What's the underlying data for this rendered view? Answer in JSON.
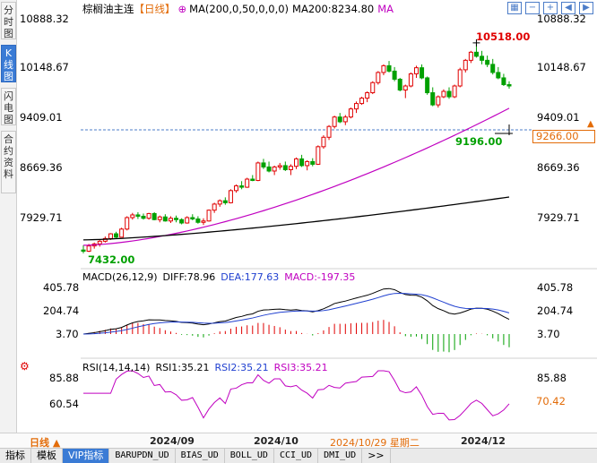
{
  "sidebar": {
    "tabs": [
      "分时图",
      "K线图",
      "闪电图",
      "合约资料"
    ],
    "active_index": 1
  },
  "header": {
    "title": "棕榈油主连",
    "freq": "【日线】",
    "ma_text": "MA(200,0,50,0,0,0)",
    "ma200_text": "MA200:8234.80",
    "ma_tag": "MA",
    "icons": [
      "grid-icon",
      "minus-icon",
      "plus-icon",
      "arrow-left-icon",
      "arrow-right-icon"
    ]
  },
  "price_axis": {
    "labels": [
      "10888.32",
      "10148.67",
      "9409.01",
      "8669.36",
      "7929.71"
    ],
    "current": "9266.00"
  },
  "annotations": {
    "high": "10518.00",
    "low": "7432.00",
    "last_low": "9196.00"
  },
  "macd": {
    "title": "MACD(26,12,9)",
    "diff": "DIFF:78.96",
    "dea": "DEA:177.63",
    "macd": "MACD:-197.35",
    "labels": [
      "405.78",
      "204.74",
      "3.70"
    ]
  },
  "rsi": {
    "title": "RSI(14,14,14)",
    "rsi1": "RSI1:35.21",
    "rsi2": "RSI2:35.21",
    "rsi3": "RSI3:35.21",
    "labels": [
      "85.88",
      "60.54"
    ],
    "current": "70.42"
  },
  "xaxis": {
    "period": "日线 ▲",
    "dates": [
      "2024/09",
      "2024/10",
      "2024/10/29 星期二",
      "2024/12"
    ]
  },
  "bottom_tabs": [
    "指标",
    "模板",
    "VIP指标",
    "BARUPDN_UD",
    "BIAS_UD",
    "BOLL_UD",
    "CCI_UD",
    "DMI_UD",
    ">>"
  ],
  "bottom_active": 2,
  "colors": {
    "up": "#e00000",
    "down": "#00a000",
    "ma50": "#c000c0",
    "ma200": "#000000",
    "accent": "#3a7bd5",
    "orange": "#e36c09"
  },
  "chart_data": [
    {
      "type": "candlestick",
      "title": "棕榈油主连",
      "price_range": [
        7432,
        10888.32
      ],
      "ohlc_approx": [
        [
          7450,
          7520,
          7400,
          7432
        ],
        [
          7432,
          7540,
          7420,
          7510
        ],
        [
          7510,
          7560,
          7470,
          7540
        ],
        [
          7540,
          7600,
          7500,
          7580
        ],
        [
          7580,
          7650,
          7560,
          7620
        ],
        [
          7620,
          7700,
          7600,
          7690
        ],
        [
          7690,
          7720,
          7620,
          7640
        ],
        [
          7640,
          7780,
          7640,
          7760
        ],
        [
          7760,
          7950,
          7740,
          7930
        ],
        [
          7930,
          8000,
          7900,
          7970
        ],
        [
          7970,
          8010,
          7910,
          7950
        ],
        [
          7950,
          7990,
          7900,
          7920
        ],
        [
          7920,
          8000,
          7900,
          7990
        ],
        [
          7990,
          8010,
          7890,
          7900
        ],
        [
          7900,
          7960,
          7860,
          7940
        ],
        [
          7940,
          7980,
          7870,
          7880
        ],
        [
          7880,
          7950,
          7850,
          7920
        ],
        [
          7920,
          7960,
          7860,
          7900
        ],
        [
          7900,
          7920,
          7830,
          7850
        ],
        [
          7850,
          7950,
          7840,
          7930
        ],
        [
          7930,
          7980,
          7890,
          7910
        ],
        [
          7910,
          7950,
          7840,
          7860
        ],
        [
          7860,
          7920,
          7820,
          7880
        ],
        [
          7880,
          8050,
          7870,
          8040
        ],
        [
          8040,
          8150,
          8000,
          8130
        ],
        [
          8130,
          8200,
          8090,
          8180
        ],
        [
          8180,
          8230,
          8120,
          8150
        ],
        [
          8150,
          8350,
          8140,
          8330
        ],
        [
          8330,
          8420,
          8300,
          8400
        ],
        [
          8400,
          8470,
          8350,
          8380
        ],
        [
          8380,
          8520,
          8370,
          8500
        ],
        [
          8500,
          8560,
          8470,
          8480
        ],
        [
          8480,
          8760,
          8470,
          8740
        ],
        [
          8740,
          8800,
          8650,
          8680
        ],
        [
          8680,
          8760,
          8600,
          8620
        ],
        [
          8620,
          8700,
          8560,
          8680
        ],
        [
          8680,
          8740,
          8640,
          8700
        ],
        [
          8700,
          8760,
          8620,
          8640
        ],
        [
          8640,
          8720,
          8560,
          8690
        ],
        [
          8690,
          8820,
          8650,
          8800
        ],
        [
          8800,
          8860,
          8680,
          8700
        ],
        [
          8700,
          8780,
          8630,
          8760
        ],
        [
          8760,
          8810,
          8690,
          8720
        ],
        [
          8720,
          9000,
          8710,
          8980
        ],
        [
          8980,
          9150,
          8950,
          9120
        ],
        [
          9120,
          9300,
          9080,
          9280
        ],
        [
          9280,
          9440,
          9250,
          9420
        ],
        [
          9420,
          9480,
          9330,
          9350
        ],
        [
          9350,
          9450,
          9300,
          9420
        ],
        [
          9420,
          9560,
          9400,
          9540
        ],
        [
          9540,
          9650,
          9480,
          9620
        ],
        [
          9620,
          9720,
          9600,
          9700
        ],
        [
          9700,
          9800,
          9640,
          9780
        ],
        [
          9780,
          9950,
          9760,
          9930
        ],
        [
          9930,
          10100,
          9900,
          10080
        ],
        [
          10080,
          10200,
          10040,
          10180
        ],
        [
          10180,
          10250,
          10080,
          10100
        ],
        [
          10100,
          10160,
          9950,
          9980
        ],
        [
          9980,
          10000,
          9800,
          9820
        ],
        [
          9820,
          9900,
          9700,
          9880
        ],
        [
          9880,
          10080,
          9860,
          10060
        ],
        [
          10060,
          10180,
          10000,
          10150
        ],
        [
          10150,
          10200,
          9980,
          10000
        ],
        [
          10000,
          10020,
          9750,
          9780
        ],
        [
          9780,
          9860,
          9580,
          9600
        ],
        [
          9600,
          9740,
          9560,
          9720
        ],
        [
          9720,
          9830,
          9700,
          9800
        ],
        [
          9800,
          9860,
          9690,
          9720
        ],
        [
          9720,
          9900,
          9700,
          9880
        ],
        [
          9880,
          10150,
          9860,
          10120
        ],
        [
          10120,
          10280,
          10080,
          10260
        ],
        [
          10260,
          10400,
          10220,
          10380
        ],
        [
          10380,
          10518,
          10300,
          10320
        ],
        [
          10320,
          10400,
          10200,
          10260
        ],
        [
          10260,
          10330,
          10160,
          10200
        ],
        [
          10200,
          10280,
          10050,
          10080
        ],
        [
          10080,
          10160,
          9980,
          10000
        ],
        [
          10000,
          10060,
          9880,
          9900
        ],
        [
          9900,
          9950,
          9840,
          9880
        ]
      ],
      "ma50_range": [
        7520,
        9550
      ],
      "ma200_range": [
        7600,
        8235
      ],
      "current_price": 9266.0,
      "high": 10518.0,
      "low": 7432.0
    },
    {
      "type": "line",
      "title": "MACD(26,12,9)",
      "series": [
        {
          "name": "DIFF",
          "last": 78.96
        },
        {
          "name": "DEA",
          "last": 177.63
        },
        {
          "name": "MACD",
          "last": -197.35
        }
      ]
    },
    {
      "type": "line",
      "title": "RSI(14,14,14)",
      "series": [
        {
          "name": "RSI1",
          "last": 35.21
        },
        {
          "name": "RSI2",
          "last": 35.21
        },
        {
          "name": "RSI3",
          "last": 35.21
        }
      ]
    }
  ]
}
